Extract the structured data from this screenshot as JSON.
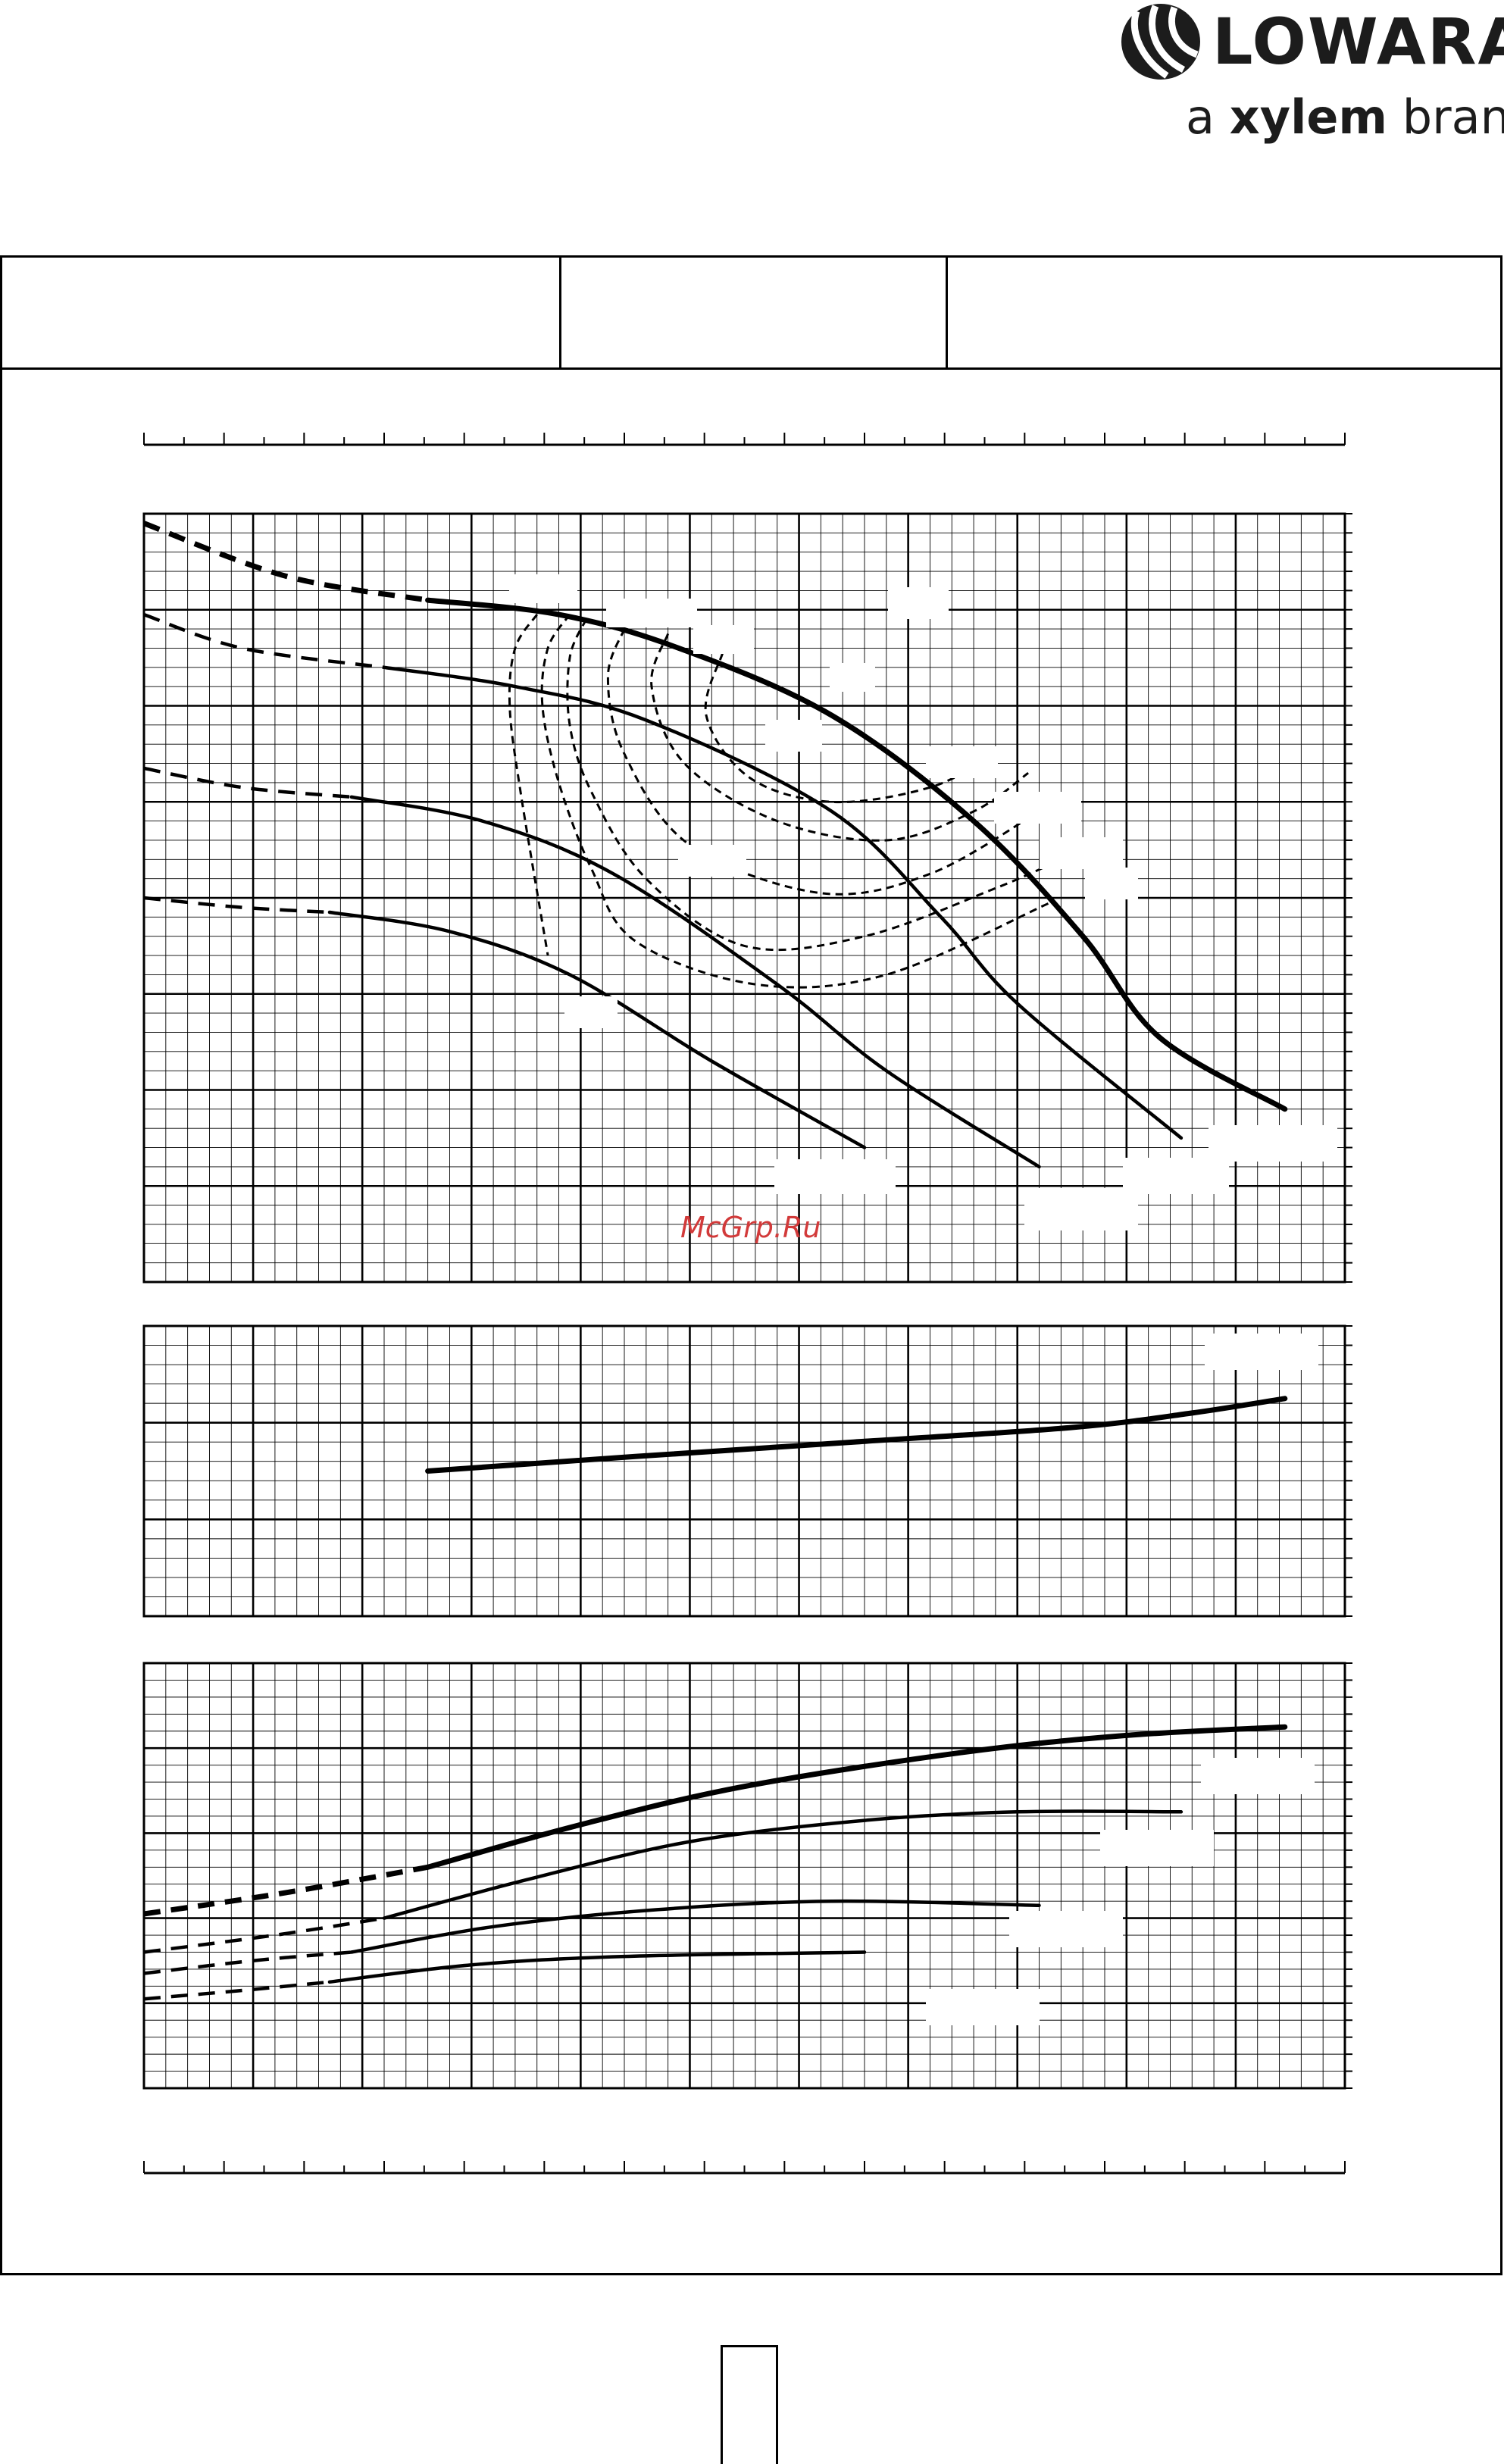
{
  "brand": {
    "name": "LOWARA",
    "tagline_prefix": "a",
    "tagline_bold": "xylem",
    "tagline_suffix": "brand",
    "color": "#1c1c1c"
  },
  "watermark": "McGrp.Ru",
  "header_cells": [
    "",
    "",
    ""
  ],
  "page_number": "",
  "chart_data": [
    {
      "type": "line",
      "title": "",
      "xlabel": "",
      "ylabel": "",
      "xlim": [
        0,
        11
      ],
      "ylim": [
        0,
        8
      ],
      "grid": true,
      "series": [
        {
          "dashed": [
            [
              0,
              7.9
            ],
            [
              1.3,
              7.35
            ],
            [
              2.6,
              7.1
            ]
          ],
          "solid": [
            [
              2.6,
              7.1
            ],
            [
              3.8,
              6.95
            ],
            [
              4.9,
              6.6
            ],
            [
              6.3,
              5.9
            ],
            [
              7.6,
              4.8
            ],
            [
              8.6,
              3.6
            ],
            [
              9.3,
              2.55
            ],
            [
              10.45,
              1.8
            ]
          ],
          "thick": true
        },
        {
          "dashed": [
            [
              0,
              6.95
            ],
            [
              0.9,
              6.6
            ],
            [
              2.2,
              6.4
            ]
          ],
          "solid": [
            [
              2.2,
              6.4
            ],
            [
              3.4,
              6.2
            ],
            [
              4.6,
              5.85
            ],
            [
              6.3,
              4.9
            ],
            [
              7.3,
              3.8
            ],
            [
              8.0,
              2.9
            ],
            [
              9.5,
              1.5
            ]
          ],
          "thick": false
        },
        {
          "dashed": [
            [
              0,
              5.35
            ],
            [
              0.9,
              5.15
            ],
            [
              1.9,
              5.05
            ]
          ],
          "solid": [
            [
              1.9,
              5.05
            ],
            [
              3.1,
              4.8
            ],
            [
              4.3,
              4.25
            ],
            [
              5.8,
              3.1
            ],
            [
              6.8,
              2.2
            ],
            [
              8.2,
              1.2
            ]
          ],
          "thick": false
        },
        {
          "dashed": [
            [
              0,
              4.0
            ],
            [
              0.9,
              3.9
            ],
            [
              1.7,
              3.85
            ]
          ],
          "solid": [
            [
              1.7,
              3.85
            ],
            [
              2.8,
              3.65
            ],
            [
              3.9,
              3.2
            ],
            [
              5.2,
              2.3
            ],
            [
              6.6,
              1.4
            ]
          ],
          "thick": false
        }
      ],
      "efficiency_contours": [
        [
          [
            3.6,
            6.95
          ],
          [
            3.4,
            6.6
          ],
          [
            3.35,
            6.0
          ],
          [
            3.45,
            5.1
          ],
          [
            3.7,
            3.4
          ]
        ],
        [
          [
            3.9,
            6.95
          ],
          [
            3.7,
            6.6
          ],
          [
            3.65,
            6.0
          ],
          [
            3.8,
            5.2
          ],
          [
            4.1,
            4.3
          ],
          [
            4.5,
            3.55
          ],
          [
            5.6,
            3.1
          ],
          [
            6.8,
            3.2
          ],
          [
            8.3,
            3.95
          ]
        ],
        [
          [
            4.05,
            6.9
          ],
          [
            3.9,
            6.5
          ],
          [
            3.9,
            5.8
          ],
          [
            4.1,
            5.1
          ],
          [
            4.6,
            4.2
          ],
          [
            5.5,
            3.5
          ],
          [
            6.6,
            3.6
          ],
          [
            7.8,
            4.1
          ],
          [
            8.4,
            4.4
          ]
        ],
        [
          [
            4.4,
            6.8
          ],
          [
            4.25,
            6.3
          ],
          [
            4.4,
            5.5
          ],
          [
            5.0,
            4.55
          ],
          [
            6.2,
            4.05
          ],
          [
            7.2,
            4.25
          ],
          [
            8.2,
            4.9
          ]
        ],
        [
          [
            4.8,
            6.75
          ],
          [
            4.65,
            6.2
          ],
          [
            4.95,
            5.4
          ],
          [
            5.8,
            4.8
          ],
          [
            6.8,
            4.6
          ],
          [
            7.6,
            4.9
          ],
          [
            8.1,
            5.3
          ]
        ],
        [
          [
            5.3,
            6.55
          ],
          [
            5.15,
            5.9
          ],
          [
            5.55,
            5.25
          ],
          [
            6.3,
            5.0
          ],
          [
            7.2,
            5.15
          ],
          [
            7.8,
            5.5
          ]
        ]
      ],
      "blank_labels": 12
    },
    {
      "type": "line",
      "title": "",
      "xlabel": "",
      "ylabel": "",
      "xlim": [
        0,
        11
      ],
      "ylim": [
        0,
        3
      ],
      "grid": true,
      "series": [
        {
          "solid": [
            [
              2.6,
              1.5
            ],
            [
              4.5,
              1.65
            ],
            [
              6.5,
              1.8
            ],
            [
              8.5,
              1.95
            ],
            [
              9.6,
              2.1
            ],
            [
              10.45,
              2.25
            ]
          ],
          "thick": true
        }
      ],
      "blank_labels": 1
    },
    {
      "type": "line",
      "title": "",
      "xlabel": "",
      "ylabel": "",
      "xlim": [
        0,
        11
      ],
      "ylim": [
        0,
        5
      ],
      "grid": true,
      "series": [
        {
          "dashed": [
            [
              0,
              2.05
            ],
            [
              1.3,
              2.3
            ],
            [
              2.6,
              2.6
            ]
          ],
          "solid": [
            [
              2.6,
              2.6
            ],
            [
              4.0,
              3.1
            ],
            [
              5.5,
              3.55
            ],
            [
              7.5,
              3.95
            ],
            [
              9.0,
              4.15
            ],
            [
              10.45,
              4.25
            ]
          ],
          "thick": true
        },
        {
          "dashed": [
            [
              0,
              1.6
            ],
            [
              1.2,
              1.8
            ],
            [
              2.2,
              2.0
            ]
          ],
          "solid": [
            [
              2.2,
              2.0
            ],
            [
              3.5,
              2.45
            ],
            [
              5.0,
              2.9
            ],
            [
              6.6,
              3.15
            ],
            [
              8.0,
              3.25
            ],
            [
              9.5,
              3.25
            ]
          ],
          "thick": false
        },
        {
          "dashed": [
            [
              0,
              1.35
            ],
            [
              1.0,
              1.5
            ],
            [
              1.9,
              1.6
            ]
          ],
          "solid": [
            [
              1.9,
              1.6
            ],
            [
              3.2,
              1.9
            ],
            [
              4.7,
              2.1
            ],
            [
              6.3,
              2.2
            ],
            [
              8.2,
              2.15
            ]
          ],
          "thick": false
        },
        {
          "dashed": [
            [
              0,
              1.05
            ],
            [
              0.9,
              1.15
            ],
            [
              1.7,
              1.25
            ]
          ],
          "solid": [
            [
              1.7,
              1.25
            ],
            [
              3.0,
              1.45
            ],
            [
              4.4,
              1.55
            ],
            [
              6.6,
              1.6
            ]
          ],
          "thick": false
        }
      ],
      "blank_labels": 4
    }
  ]
}
